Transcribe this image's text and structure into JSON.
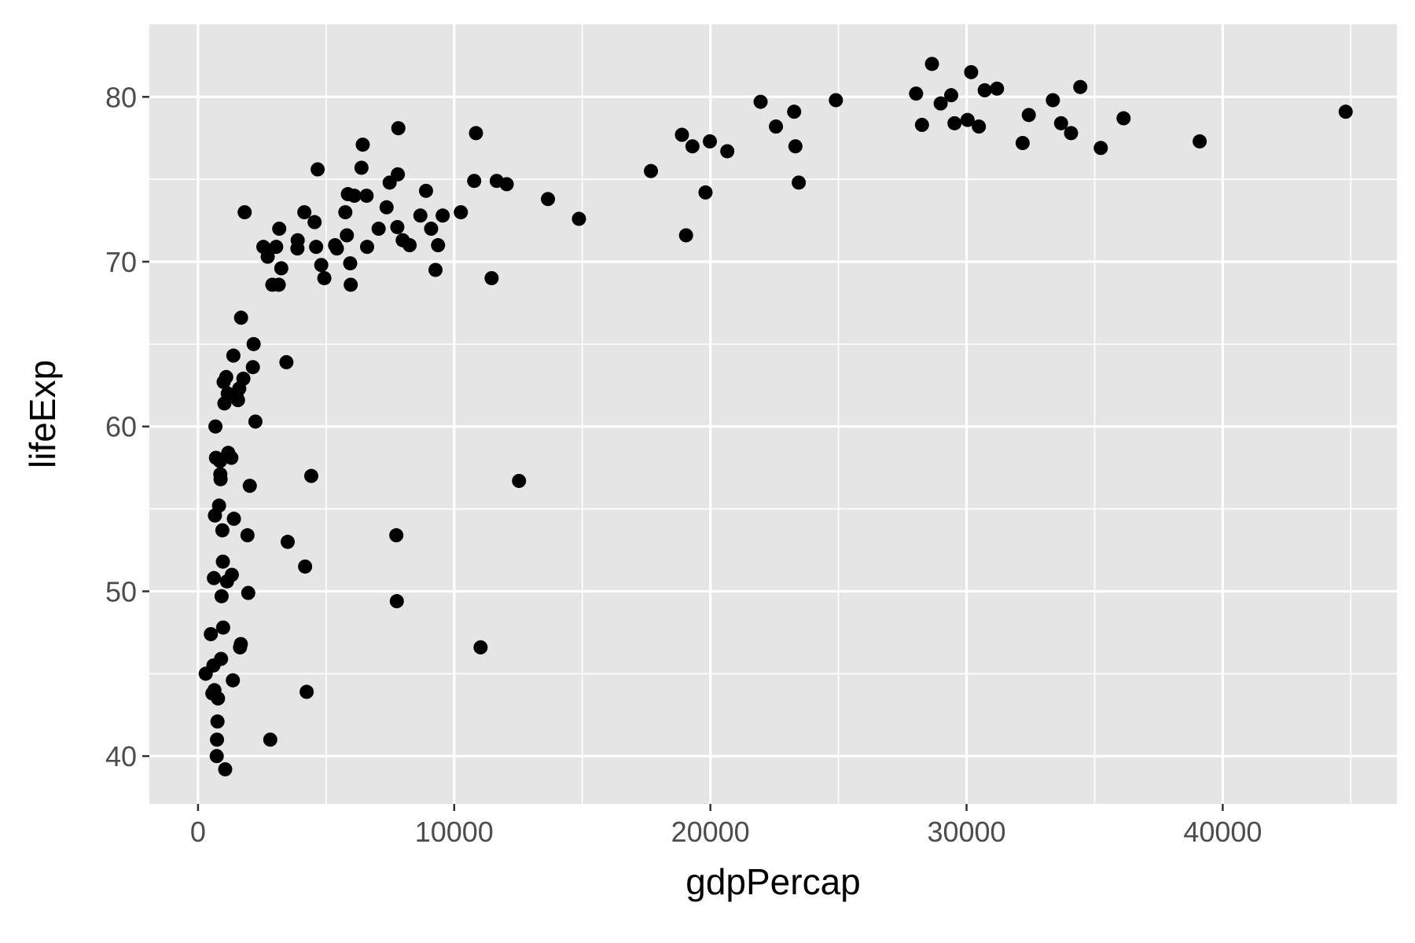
{
  "chart_data": {
    "type": "scatter",
    "title": "",
    "xlabel": "gdpPercap",
    "ylabel": "lifeExp",
    "xlim": [
      -1900,
      46800
    ],
    "ylim": [
      37.1,
      84.4
    ],
    "x_ticks": [
      0,
      10000,
      20000,
      30000,
      40000
    ],
    "y_ticks": [
      40,
      50,
      60,
      70,
      80
    ],
    "x_tick_labels": [
      "0",
      "10000",
      "20000",
      "30000",
      "40000"
    ],
    "y_tick_labels": [
      "40",
      "50",
      "60",
      "70",
      "80"
    ],
    "grid": true,
    "legend": "none",
    "colors": {
      "panel": "#e5e5e5",
      "grid": "#ffffff",
      "point": "#000000",
      "tick_text": "#4d4d4d",
      "title_text": "#000000"
    },
    "points": [
      [
        300,
        45.0
      ],
      [
        500,
        47.4
      ],
      [
        560,
        43.8
      ],
      [
        600,
        45.5
      ],
      [
        640,
        44.0
      ],
      [
        620,
        50.8
      ],
      [
        660,
        54.6
      ],
      [
        680,
        60.0
      ],
      [
        700,
        58.1
      ],
      [
        730,
        40.0
      ],
      [
        740,
        41.0
      ],
      [
        760,
        42.1
      ],
      [
        780,
        43.5
      ],
      [
        820,
        55.2
      ],
      [
        860,
        57.9
      ],
      [
        870,
        57.1
      ],
      [
        880,
        56.8
      ],
      [
        900,
        45.9
      ],
      [
        920,
        49.7
      ],
      [
        950,
        53.7
      ],
      [
        970,
        51.8
      ],
      [
        980,
        47.8
      ],
      [
        1000,
        62.7
      ],
      [
        1030,
        61.4
      ],
      [
        1060,
        39.2
      ],
      [
        1100,
        63.0
      ],
      [
        1130,
        50.6
      ],
      [
        1160,
        62.0
      ],
      [
        1180,
        58.4
      ],
      [
        1300,
        58.1
      ],
      [
        1320,
        51.0
      ],
      [
        1360,
        44.6
      ],
      [
        1380,
        64.3
      ],
      [
        1400,
        54.4
      ],
      [
        1500,
        61.9
      ],
      [
        1560,
        61.6
      ],
      [
        1610,
        62.3
      ],
      [
        1640,
        46.6
      ],
      [
        1670,
        46.8
      ],
      [
        1680,
        66.6
      ],
      [
        1770,
        62.9
      ],
      [
        1820,
        73.0
      ],
      [
        1930,
        53.4
      ],
      [
        1960,
        49.9
      ],
      [
        2020,
        56.4
      ],
      [
        2140,
        63.6
      ],
      [
        2170,
        65.0
      ],
      [
        2240,
        60.3
      ],
      [
        2550,
        70.9
      ],
      [
        2720,
        70.3
      ],
      [
        2820,
        41.0
      ],
      [
        2900,
        68.6
      ],
      [
        3050,
        70.9
      ],
      [
        3150,
        68.6
      ],
      [
        3170,
        72.0
      ],
      [
        3250,
        69.6
      ],
      [
        3450,
        63.9
      ],
      [
        3500,
        53.0
      ],
      [
        3880,
        70.8
      ],
      [
        3890,
        71.3
      ],
      [
        4150,
        73.0
      ],
      [
        4180,
        51.5
      ],
      [
        4240,
        43.9
      ],
      [
        4420,
        57.0
      ],
      [
        4550,
        72.4
      ],
      [
        4610,
        70.9
      ],
      [
        4670,
        75.6
      ],
      [
        4810,
        69.8
      ],
      [
        4930,
        69.0
      ],
      [
        5350,
        71.0
      ],
      [
        5420,
        70.8
      ],
      [
        5750,
        73.0
      ],
      [
        5810,
        71.6
      ],
      [
        5850,
        74.1
      ],
      [
        5940,
        69.9
      ],
      [
        5960,
        68.6
      ],
      [
        6100,
        74.0
      ],
      [
        6380,
        75.7
      ],
      [
        6430,
        77.1
      ],
      [
        6580,
        74.0
      ],
      [
        6600,
        70.9
      ],
      [
        7050,
        72.0
      ],
      [
        7360,
        73.3
      ],
      [
        7480,
        74.8
      ],
      [
        7740,
        53.4
      ],
      [
        7760,
        49.4
      ],
      [
        7780,
        72.1
      ],
      [
        7800,
        75.3
      ],
      [
        7820,
        78.1
      ],
      [
        7990,
        71.3
      ],
      [
        8260,
        71.0
      ],
      [
        8680,
        72.8
      ],
      [
        8900,
        74.3
      ],
      [
        9100,
        72.0
      ],
      [
        9270,
        69.5
      ],
      [
        9370,
        71.0
      ],
      [
        9550,
        72.8
      ],
      [
        10260,
        73.0
      ],
      [
        10780,
        74.9
      ],
      [
        10850,
        77.8
      ],
      [
        11030,
        46.6
      ],
      [
        11460,
        69.0
      ],
      [
        11660,
        74.9
      ],
      [
        12050,
        74.7
      ],
      [
        12530,
        56.7
      ],
      [
        13660,
        73.8
      ],
      [
        14870,
        72.6
      ],
      [
        17680,
        75.5
      ],
      [
        18890,
        77.7
      ],
      [
        19050,
        71.6
      ],
      [
        19300,
        77.0
      ],
      [
        19810,
        74.2
      ],
      [
        19980,
        77.3
      ],
      [
        20660,
        76.7
      ],
      [
        21960,
        79.7
      ],
      [
        22560,
        78.2
      ],
      [
        23270,
        79.1
      ],
      [
        23320,
        77.0
      ],
      [
        23450,
        74.8
      ],
      [
        24900,
        79.8
      ],
      [
        28030,
        80.2
      ],
      [
        28260,
        78.3
      ],
      [
        28650,
        82.0
      ],
      [
        28990,
        79.6
      ],
      [
        29400,
        80.1
      ],
      [
        29530,
        78.4
      ],
      [
        30040,
        78.6
      ],
      [
        30180,
        81.5
      ],
      [
        30480,
        78.2
      ],
      [
        30710,
        80.4
      ],
      [
        31190,
        80.5
      ],
      [
        32190,
        77.2
      ],
      [
        32430,
        78.9
      ],
      [
        33370,
        79.8
      ],
      [
        33690,
        78.4
      ],
      [
        34080,
        77.8
      ],
      [
        34440,
        80.6
      ],
      [
        35240,
        76.9
      ],
      [
        36130,
        78.7
      ],
      [
        39100,
        77.3
      ],
      [
        44800,
        79.1
      ]
    ]
  }
}
